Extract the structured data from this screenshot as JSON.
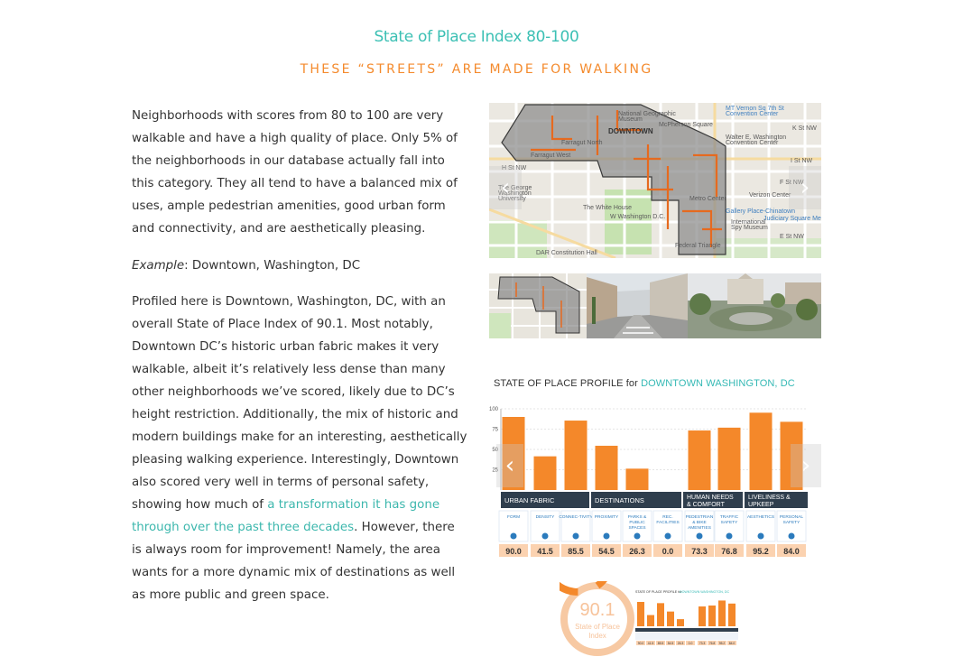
{
  "header": {
    "title": "State of Place Index 80-100",
    "subtitle": "THESE “STREETS” ARE MADE FOR WALKING"
  },
  "body": {
    "p1": "Neighborhoods with scores from 80 to 100 are very walkable and have a high quality of place. Only 5% of the neighborhoods in our database actually fall into this category. They all tend to have a balanced mix of uses, ample pedestrian amenities, good urban form and connectivity, and are aesthetically pleasing.",
    "example_label": "Example",
    "example_text": ": Downtown, Washington, DC",
    "p3_part1": "Profiled here is Downtown, Washington, DC, with an overall State of Place Index of 90.1.  Most notably, Downtown DC’s historic urban fabric makes it very walkable, albeit it’s relatively less dense than many other neighborhoods we’ve scored, likely due to DC’s height restriction. Additionally, the mix of historic and modern buildings make for an interesting, aesthetically pleasing walking experience. Interestingly, Downtown also scored very well in terms of personal safety, showing how much of ",
    "p3_link": "a transformation it has gone through over the past three decades",
    "p3_part2": ". However, there is always room for improvement! Namely, the area wants for a more dynamic mix of destinations as well as more public and green space."
  },
  "map": {
    "labels": [
      "National Geographic Museum",
      "DOWNTOWN",
      "Walter E. Washington Convention Center",
      "MT Vernon Sq 7th St Convention Center",
      "K St NW",
      "I St NW",
      "The George Washington University",
      "The White House",
      "W Washington D.C.",
      "Verizon Center",
      "Gallery Place-Chinatown",
      "Judiciary Square Metro",
      "International Spy Museum",
      "DAR Constitution Hall",
      "E St NW",
      "H St NW",
      "F St NW",
      "Farragut North",
      "Farragut West",
      "McPherson Square",
      "Metro Center",
      "Federal Triangle"
    ]
  },
  "chart_data": {
    "type": "bar",
    "title": "STATE OF PLACE PROFILE for ",
    "title_highlight": "DOWNTOWN WASHINGTON, DC",
    "ylim": [
      0,
      100
    ],
    "yticks": [
      "100",
      "75",
      "50",
      "25"
    ],
    "categories": [
      "FORM",
      "DENSITY",
      "CONNEC-TIVITY",
      "PROXIMITY",
      "PARKS & PUBLIC SPACES",
      "REC. FACILITIES",
      "PEDESTRIAN & BIKE AMENITIES",
      "TRAFFIC SAFETY",
      "AESTHETICS",
      "PERSONAL SAFETY"
    ],
    "values": [
      90.0,
      41.5,
      85.5,
      54.5,
      26.3,
      0.0,
      73.3,
      76.8,
      95.2,
      84.0
    ],
    "value_labels": [
      "90.0",
      "41.5",
      "85.5",
      "54.5",
      "26.3",
      "0.0",
      "73.3",
      "76.8",
      "95.2",
      "84.0"
    ],
    "groups": [
      {
        "label": "URBAN FABRIC"
      },
      {
        "label": "DESTINATIONS"
      },
      {
        "label": "HUMAN NEEDS & COMFORT"
      },
      {
        "label": "LIVELINESS & UPKEEP"
      }
    ],
    "bar_color": "#f4882a",
    "header_color": "#2f3e4d",
    "label_color": "#2b7bbd",
    "value_bg": "#fbd2b0"
  },
  "mini": {
    "score": "90.1",
    "index_label": "State of Place Index",
    "heading": "STATE OF PLACE PROFILE for ",
    "heading_highlight": "DOWNTOWN WASHINGTON, DC",
    "values": [
      "90.0",
      "41.5",
      "85.5",
      "54.5",
      "26.3",
      "0.0",
      "73.3",
      "76.8",
      "95.2",
      "84.0"
    ]
  },
  "colors": {
    "teal": "#3cc0b4",
    "orange": "#f48a2c"
  },
  "controls": {
    "prev": "‹",
    "next": "›"
  }
}
